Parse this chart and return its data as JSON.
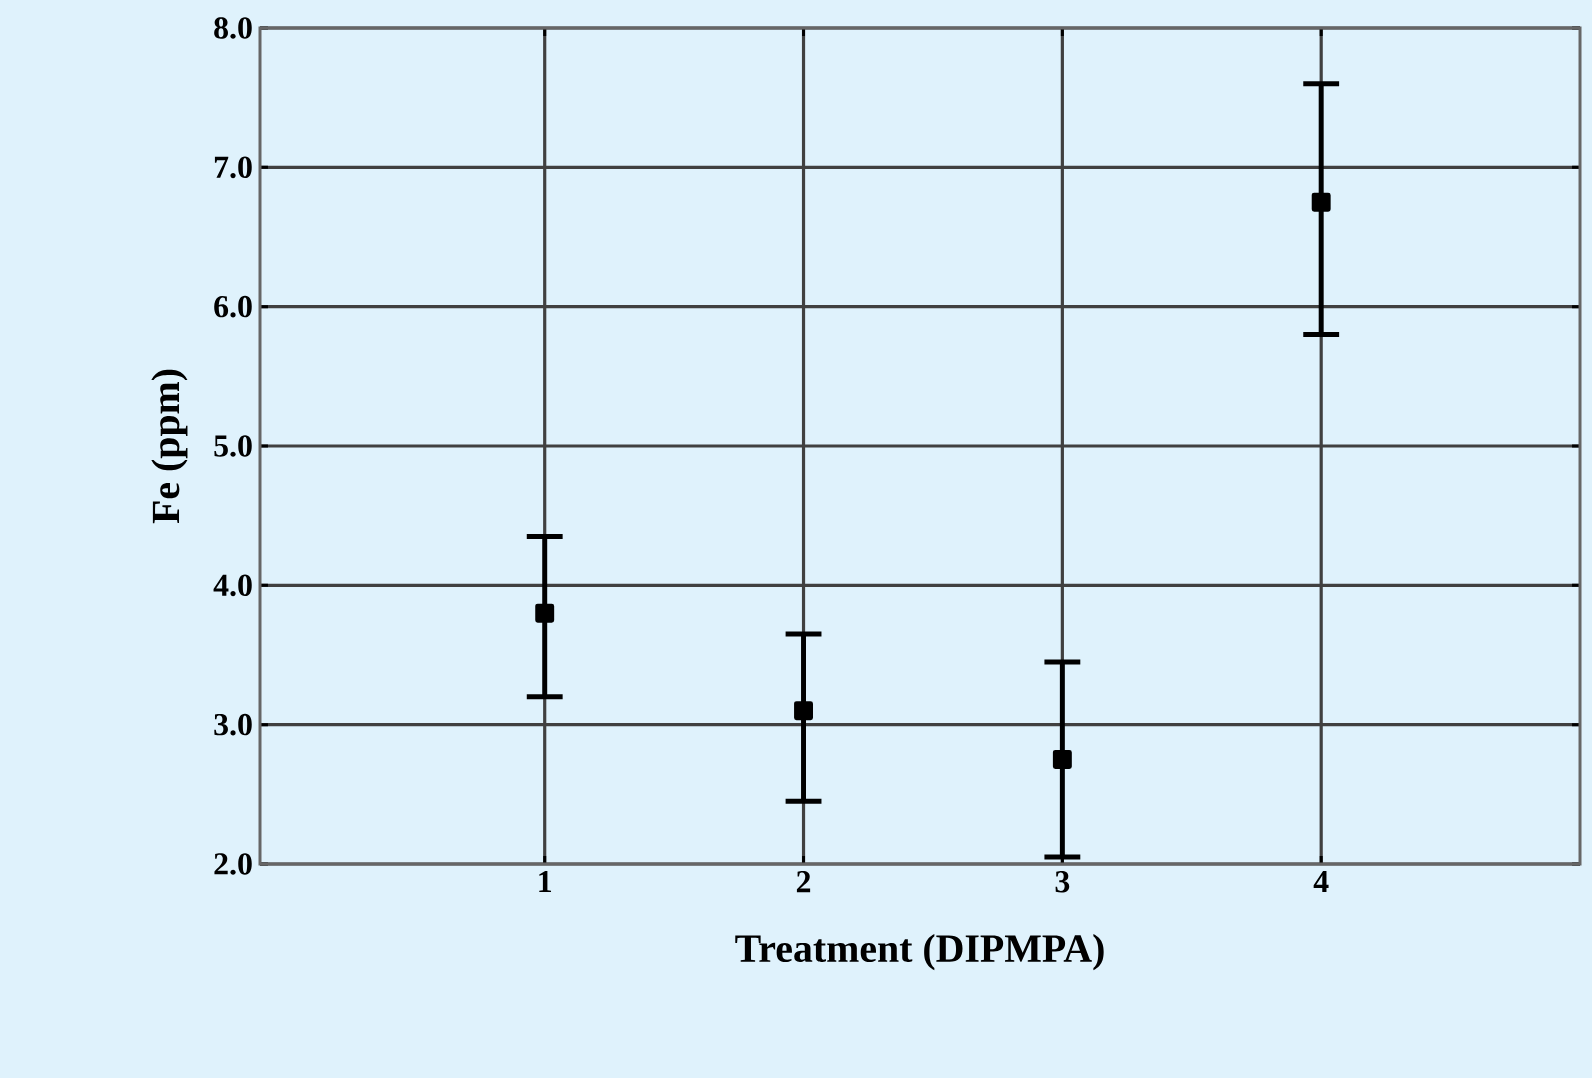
{
  "chart_data": {
    "type": "scatter",
    "xlabel": "Treatment (DIPMPA)",
    "ylabel": "Fe (ppm)",
    "x": [
      1,
      2,
      3,
      4
    ],
    "series": [
      {
        "color": "#000000",
        "values": [
          3.8,
          3.1,
          2.75,
          6.75
        ],
        "errors": [
          [
            3.2,
            4.35
          ],
          [
            2.45,
            3.65
          ],
          [
            2.05,
            3.45
          ],
          [
            5.8,
            7.6
          ]
        ]
      }
    ],
    "xlim": [
      -0.1,
      5
    ],
    "xticks": [
      1,
      2,
      3,
      4
    ],
    "ylim": [
      2,
      8
    ],
    "yticks": [
      {
        "value": 2,
        "label": "2.0"
      },
      {
        "value": 3,
        "label": "3.0"
      },
      {
        "value": 4,
        "label": "4.0"
      },
      {
        "value": 5,
        "label": "5.0"
      },
      {
        "value": 6,
        "label": "6.0"
      },
      {
        "value": 7,
        "label": "7.0"
      },
      {
        "value": 8,
        "label": "8.0"
      }
    ],
    "grid": true,
    "marker": "square"
  }
}
